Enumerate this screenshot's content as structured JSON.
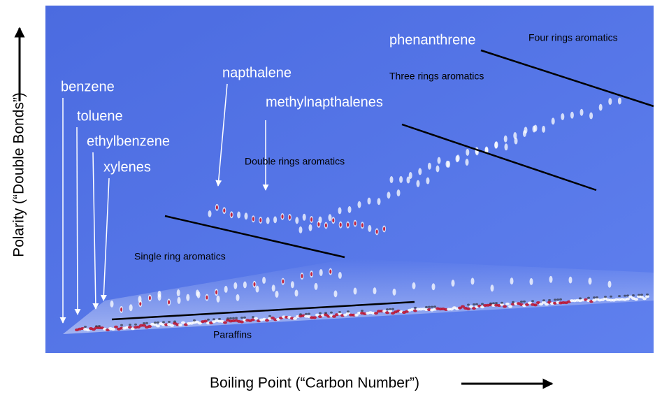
{
  "axes": {
    "y_label": "Polarity (“Double Bonds”)",
    "x_label": "Boiling Point (“Carbon Number”)"
  },
  "compounds": [
    "benzene",
    "toluene",
    "ethylbenzene",
    "xylenes",
    "napthalene",
    "methylnapthalenes",
    "phenanthrene"
  ],
  "regions": [
    "Four rings aromatics",
    "Three rings aromatics",
    "Double rings aromatics",
    "Single ring aromatics",
    "Paraffins"
  ]
}
